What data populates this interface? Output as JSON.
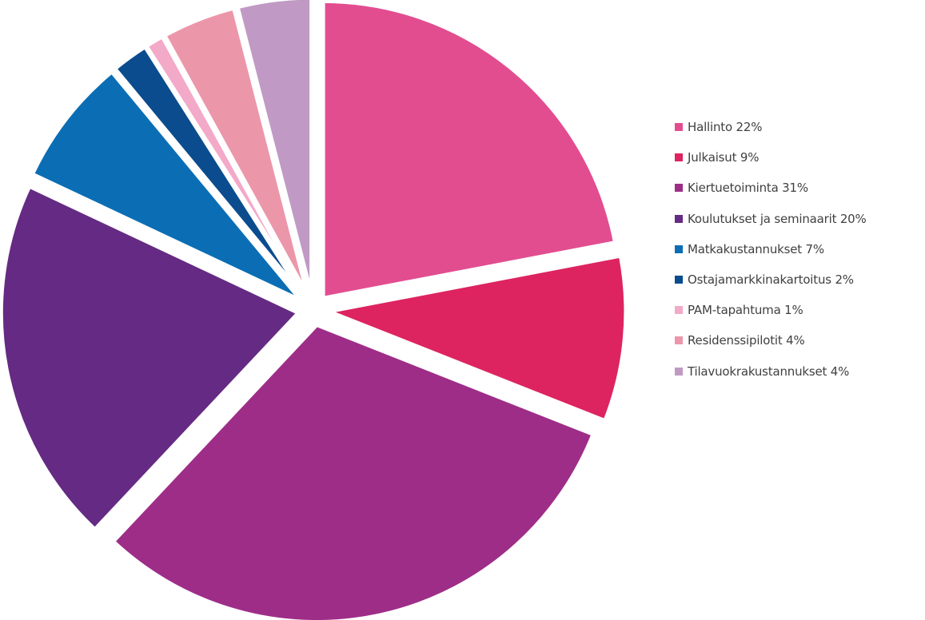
{
  "chart_data": {
    "type": "pie",
    "title": "",
    "legend_position": "right",
    "slices": [
      {
        "label": "Hallinto 22%",
        "value": 22,
        "color": "#e24d90"
      },
      {
        "label": "Julkaisut 9%",
        "value": 9,
        "color": "#dd2460"
      },
      {
        "label": "Kiertuetoiminta 31%",
        "value": 31,
        "color": "#9e2d88"
      },
      {
        "label": "Koulutukset ja seminaarit 20%",
        "value": 20,
        "color": "#652a83"
      },
      {
        "label": "Matkakustannukset 7%",
        "value": 7,
        "color": "#0b6eb4"
      },
      {
        "label": "Ostajamarkkinakartoitus 2%",
        "value": 2,
        "color": "#0b4c8e"
      },
      {
        "label": "PAM-tapahtuma 1%",
        "value": 1,
        "color": "#f3a9c8"
      },
      {
        "label": "Residenssipilotit 4%",
        "value": 4,
        "color": "#ec96aa"
      },
      {
        "label": "Tilavuokrakustannukset 4%",
        "value": 4,
        "color": "#c09ac4"
      }
    ]
  }
}
